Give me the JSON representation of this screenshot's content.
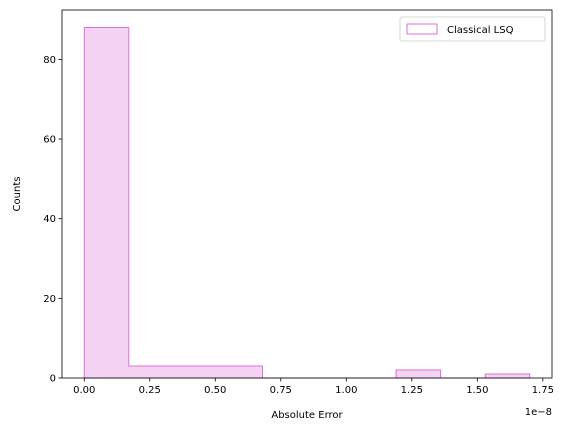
{
  "chart_data": {
    "type": "bar",
    "xlabel": "Absolute Error",
    "ylabel": "Counts",
    "x_offset_label": "1e−8",
    "xlim": [
      -0.085,
      1.785
    ],
    "ylim": [
      0,
      92.4
    ],
    "x_ticks": [
      {
        "value": 0.0,
        "label": "0.00"
      },
      {
        "value": 0.25,
        "label": "0.25"
      },
      {
        "value": 0.5,
        "label": "0.50"
      },
      {
        "value": 0.75,
        "label": "0.75"
      },
      {
        "value": 1.0,
        "label": "1.00"
      },
      {
        "value": 1.25,
        "label": "1.25"
      },
      {
        "value": 1.5,
        "label": "1.50"
      },
      {
        "value": 1.75,
        "label": "1.75"
      }
    ],
    "y_ticks": [
      {
        "value": 0,
        "label": "0"
      },
      {
        "value": 20,
        "label": "20"
      },
      {
        "value": 40,
        "label": "40"
      },
      {
        "value": 60,
        "label": "60"
      },
      {
        "value": 80,
        "label": "80"
      }
    ],
    "series": [
      {
        "name": "Classical LSQ",
        "edge_color": "#da70d6",
        "fill_color": "#f5d4f3",
        "bins": [
          {
            "x0": 0.0,
            "x1": 0.17,
            "count": 88
          },
          {
            "x0": 0.17,
            "x1": 0.34,
            "count": 3
          },
          {
            "x0": 0.34,
            "x1": 0.51,
            "count": 3
          },
          {
            "x0": 0.51,
            "x1": 0.68,
            "count": 3
          },
          {
            "x0": 0.68,
            "x1": 0.85,
            "count": 0
          },
          {
            "x0": 0.85,
            "x1": 1.02,
            "count": 0
          },
          {
            "x0": 1.02,
            "x1": 1.19,
            "count": 0
          },
          {
            "x0": 1.19,
            "x1": 1.36,
            "count": 2
          },
          {
            "x0": 1.36,
            "x1": 1.53,
            "count": 0
          },
          {
            "x0": 1.53,
            "x1": 1.7,
            "count": 1
          }
        ]
      }
    ],
    "legend_position": "top-right"
  }
}
